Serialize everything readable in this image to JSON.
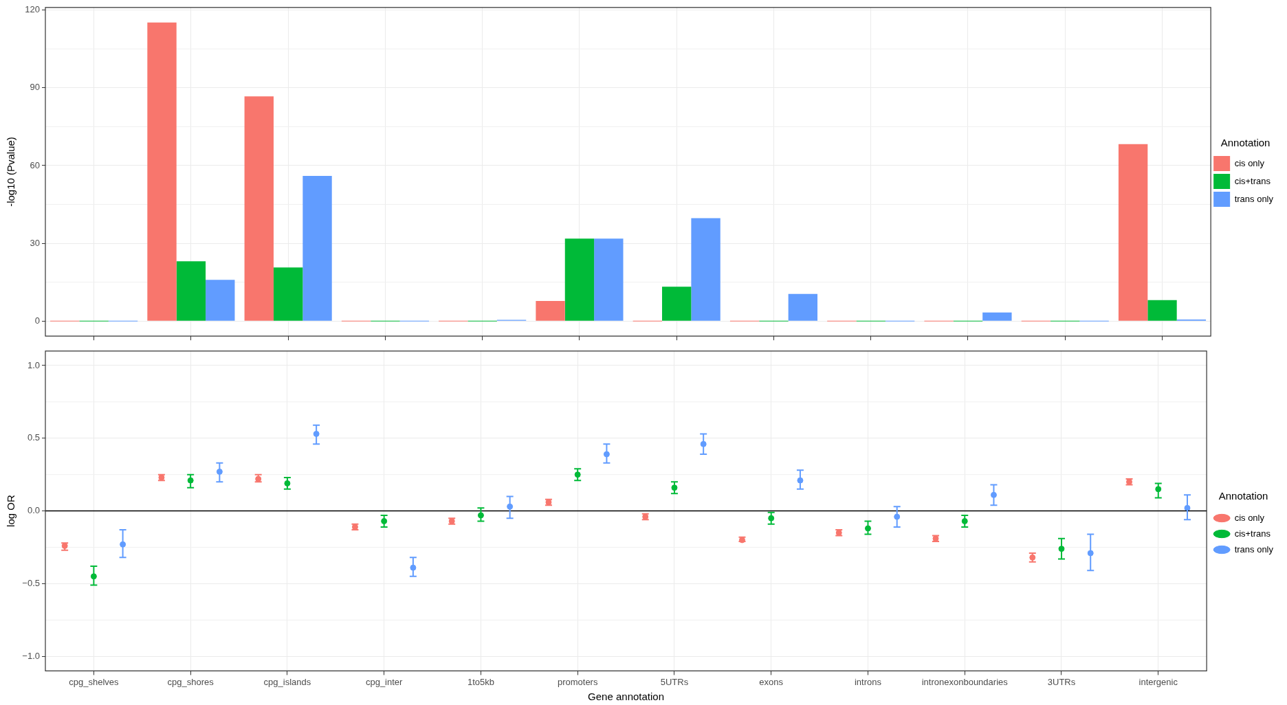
{
  "chart_data": [
    {
      "type": "bar",
      "ylabel": "-log10 (Pvalue)",
      "legend_title": "Annotation",
      "legend": "right",
      "grid": true,
      "tick_labels": "y",
      "categories": [
        null,
        null,
        null,
        null,
        null,
        null,
        null,
        null,
        null,
        null,
        null,
        null
      ],
      "ylim": [
        -5.8,
        121
      ],
      "yticks": [
        0,
        30,
        60,
        90,
        120
      ],
      "series": [
        {
          "name": "cis only",
          "color": "#f8766d",
          "values": [
            0,
            115.2,
            86.7,
            0,
            0,
            7.8,
            0,
            0,
            0,
            0,
            0,
            68.3
          ]
        },
        {
          "name": "cis+trans",
          "color": "#00ba38",
          "values": [
            0,
            23.1,
            20.7,
            0,
            0,
            31.8,
            13.3,
            0,
            0,
            0,
            0,
            8.1
          ]
        },
        {
          "name": "trans only",
          "color": "#619cff",
          "values": [
            0,
            15.9,
            56.0,
            0,
            0.5,
            31.8,
            39.7,
            10.5,
            0,
            3.3,
            0,
            0.6
          ]
        }
      ]
    },
    {
      "type": "scatter",
      "xlabel": "Gene annotation",
      "ylabel": "log OR",
      "legend_title": "Annotation",
      "legend": "right",
      "grid": true,
      "marker": "circle",
      "categories": [
        "cpg_shelves",
        "cpg_shores",
        "cpg_islands",
        "cpg_inter",
        "1to5kb",
        "promoters",
        "5UTRs",
        "exons",
        "introns",
        "intronexonboundaries",
        "3UTRs",
        "intergenic"
      ],
      "ylim": [
        -1.1,
        1.1
      ],
      "yticks": [
        {
          "value": -1,
          "label": "−1.0"
        },
        {
          "value": -0.5,
          "label": "−0.5"
        },
        {
          "value": 0,
          "label": "0.0"
        },
        {
          "value": 0.5,
          "label": "0.5"
        },
        {
          "value": 1,
          "label": "1.0"
        }
      ],
      "ref_lines": [
        {
          "axis": "y",
          "value": 0,
          "color": "#000000"
        }
      ],
      "series": [
        {
          "name": "cis only",
          "color": "#f8766d",
          "values": [
            -0.24,
            0.23,
            0.22,
            -0.11,
            -0.07,
            0.06,
            -0.04,
            -0.2,
            -0.15,
            -0.19,
            -0.32,
            0.2
          ],
          "errors": [
            [
              -0.27,
              -0.22
            ],
            [
              0.21,
              0.25
            ],
            [
              0.2,
              0.25
            ],
            [
              -0.13,
              -0.09
            ],
            [
              -0.09,
              -0.05
            ],
            [
              0.04,
              0.08
            ],
            [
              -0.06,
              -0.02
            ],
            [
              -0.21,
              -0.18
            ],
            [
              -0.17,
              -0.13
            ],
            [
              -0.21,
              -0.17
            ],
            [
              -0.35,
              -0.29
            ],
            [
              0.18,
              0.22
            ]
          ]
        },
        {
          "name": "cis+trans",
          "color": "#00ba38",
          "values": [
            -0.45,
            0.21,
            0.19,
            -0.07,
            -0.03,
            0.25,
            0.16,
            -0.05,
            -0.12,
            -0.07,
            -0.26,
            0.15
          ],
          "errors": [
            [
              -0.51,
              -0.38
            ],
            [
              0.16,
              0.25
            ],
            [
              0.15,
              0.23
            ],
            [
              -0.11,
              -0.03
            ],
            [
              -0.07,
              0.02
            ],
            [
              0.21,
              0.29
            ],
            [
              0.12,
              0.2
            ],
            [
              -0.09,
              -0.01
            ],
            [
              -0.16,
              -0.07
            ],
            [
              -0.11,
              -0.03
            ],
            [
              -0.33,
              -0.19
            ],
            [
              0.09,
              0.19
            ]
          ]
        },
        {
          "name": "trans only",
          "color": "#619cff",
          "values": [
            -0.23,
            0.27,
            0.53,
            -0.39,
            0.03,
            0.39,
            0.46,
            0.21,
            -0.04,
            0.11,
            -0.29,
            0.02
          ],
          "errors": [
            [
              -0.32,
              -0.13
            ],
            [
              0.2,
              0.33
            ],
            [
              0.46,
              0.59
            ],
            [
              -0.45,
              -0.32
            ],
            [
              -0.05,
              0.1
            ],
            [
              0.33,
              0.46
            ],
            [
              0.39,
              0.53
            ],
            [
              0.15,
              0.28
            ],
            [
              -0.11,
              0.03
            ],
            [
              0.04,
              0.18
            ],
            [
              -0.41,
              -0.16
            ],
            [
              -0.06,
              0.11
            ]
          ]
        }
      ]
    }
  ]
}
